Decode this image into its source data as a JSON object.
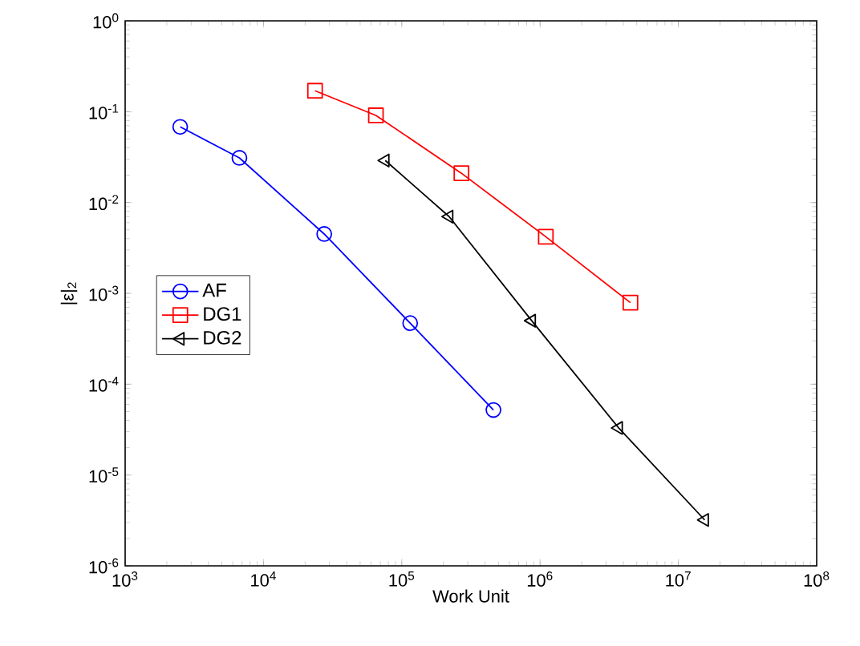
{
  "chart_data": {
    "type": "line",
    "xlabel": "Work Unit",
    "ylabel": "|ε|$_{2}$",
    "log": "xy",
    "grid": false,
    "legend": "left",
    "line_style": "solid",
    "xlim": [
      1000,
      100000000
    ],
    "ylim": [
      1e-06,
      1
    ],
    "xticks": [
      {
        "value": 1000,
        "label": "10$^{3}$"
      },
      {
        "value": 10000,
        "label": "10$^{4}$"
      },
      {
        "value": 100000,
        "label": "10$^{5}$"
      },
      {
        "value": 1000000,
        "label": "10$^{6}$"
      },
      {
        "value": 10000000,
        "label": "10$^{7}$"
      },
      {
        "value": 100000000,
        "label": "10$^{8}$"
      }
    ],
    "yticks": [
      {
        "value": 1e-06,
        "label": "10$^{-6}$"
      },
      {
        "value": 1e-05,
        "label": "10$^{-5}$"
      },
      {
        "value": 0.0001,
        "label": "10$^{-4}$"
      },
      {
        "value": 0.001,
        "label": "10$^{-3}$"
      },
      {
        "value": 0.01,
        "label": "10$^{-2}$"
      },
      {
        "value": 0.1,
        "label": "10$^{-1}$"
      },
      {
        "value": 1,
        "label": "10$^{0}$"
      }
    ],
    "series": [
      {
        "name": "AF",
        "color": "#0000ff",
        "marker": "circle",
        "x": [
          2500,
          6700,
          27500,
          115000,
          460000
        ],
        "values": [
          0.068,
          0.031,
          0.0045,
          0.00047,
          5.2e-05
        ]
      },
      {
        "name": "DG1",
        "color": "#ff0000",
        "marker": "square",
        "x": [
          23600,
          65000,
          270000,
          1100000,
          4500000
        ],
        "values": [
          0.17,
          0.091,
          0.021,
          0.0042,
          0.00079
        ]
      },
      {
        "name": "DG2",
        "color": "#000000",
        "marker": "triangle",
        "x": [
          76000,
          220000,
          870000,
          3700000,
          15500000
        ],
        "values": [
          0.029,
          0.007,
          0.0005,
          3.3e-05,
          3.2e-06
        ]
      }
    ]
  }
}
